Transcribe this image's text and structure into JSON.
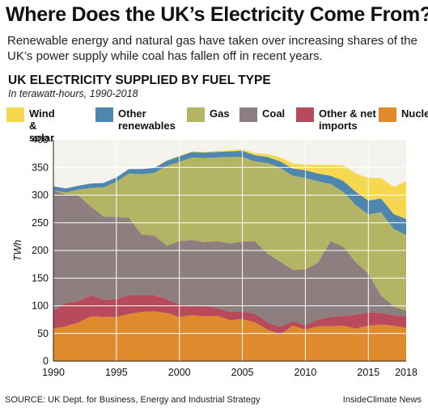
{
  "header": {
    "title": "Where Does the UK’s Electricity Come From?",
    "subtitle": "Renewable energy and natural gas have taken over increasing shares of the UK’s power supply while coal has fallen off in recent years."
  },
  "footer": {
    "source": "SOURCE: UK Dept. for Business, Energy and Industrial Strategy",
    "credit": "InsideClimate News"
  },
  "colors": {
    "nuclear": "#e08a2e",
    "other_imports": "#b74b5c",
    "coal": "#8d7f7f",
    "gas": "#b4b564",
    "other_renewables": "#4f86b0",
    "wind_solar": "#f6d750",
    "grid": "#ffffff",
    "plot_bg": "#f5f3ee"
  },
  "chart_data": {
    "type": "area",
    "stacked": true,
    "title": "UK ELECTRICITY SUPPLIED BY FUEL TYPE",
    "subtitle": "In terawatt-hours, 1990-2018",
    "xlabel": "",
    "ylabel": "TWh",
    "xlim": [
      1990,
      2018
    ],
    "ylim": [
      0,
      400
    ],
    "x_ticks": [
      "1990",
      "1995",
      "2000",
      "2005",
      "2010",
      "2015",
      "2018"
    ],
    "y_ticks": [
      "0",
      "50",
      "100",
      "150",
      "200",
      "250",
      "300",
      "350",
      "400"
    ],
    "grid": true,
    "legend_position": "top",
    "x": [
      1990,
      1991,
      1992,
      1993,
      1994,
      1995,
      1996,
      1997,
      1998,
      1999,
      2000,
      2001,
      2002,
      2003,
      2004,
      2005,
      2006,
      2007,
      2008,
      2009,
      2010,
      2011,
      2012,
      2013,
      2014,
      2015,
      2016,
      2017,
      2018
    ],
    "series": [
      {
        "name": "Nuclear",
        "color_key": "nuclear",
        "values": [
          59,
          63,
          70,
          81,
          80,
          80,
          85,
          89,
          90,
          87,
          80,
          83,
          81,
          82,
          74,
          76,
          70,
          57,
          48,
          64,
          57,
          63,
          63,
          64,
          59,
          64,
          66,
          64,
          60
        ]
      },
      {
        "name": "Other & net imports",
        "color_key": "other_imports",
        "values": [
          32,
          42,
          39,
          38,
          31,
          32,
          34,
          30,
          29,
          25,
          22,
          18,
          19,
          14,
          15,
          13,
          16,
          13,
          14,
          8,
          8,
          12,
          17,
          18,
          25,
          24,
          21,
          19,
          21
        ]
      },
      {
        "name": "Coal",
        "color_key": "coal",
        "values": [
          218,
          196,
          190,
          160,
          150,
          149,
          140,
          110,
          108,
          97,
          115,
          118,
          115,
          121,
          124,
          127,
          131,
          124,
          118,
          93,
          101,
          103,
          137,
          125,
          95,
          70,
          32,
          16,
          10
        ]
      },
      {
        "name": "Gas",
        "color_key": "gas",
        "values": [
          0,
          4,
          11,
          34,
          53,
          63,
          80,
          109,
          113,
          144,
          143,
          149,
          152,
          151,
          156,
          153,
          144,
          164,
          169,
          170,
          165,
          147,
          103,
          99,
          103,
          107,
          150,
          140,
          137
        ]
      },
      {
        "name": "Other renewables",
        "color_key": "other_renewables",
        "values": [
          7,
          7,
          7,
          8,
          8,
          8,
          8,
          9,
          9,
          9,
          10,
          10,
          10,
          10,
          10,
          11,
          11,
          11,
          12,
          13,
          14,
          14,
          15,
          20,
          24,
          25,
          25,
          27,
          29
        ]
      },
      {
        "name": "Wind & solar",
        "color_key": "wind_solar",
        "values": [
          0,
          0,
          0,
          0,
          0,
          0,
          0,
          0,
          0,
          1,
          1,
          1,
          1,
          2,
          2,
          3,
          4,
          5,
          7,
          9,
          10,
          16,
          20,
          28,
          33,
          41,
          37,
          49,
          68
        ]
      }
    ]
  }
}
